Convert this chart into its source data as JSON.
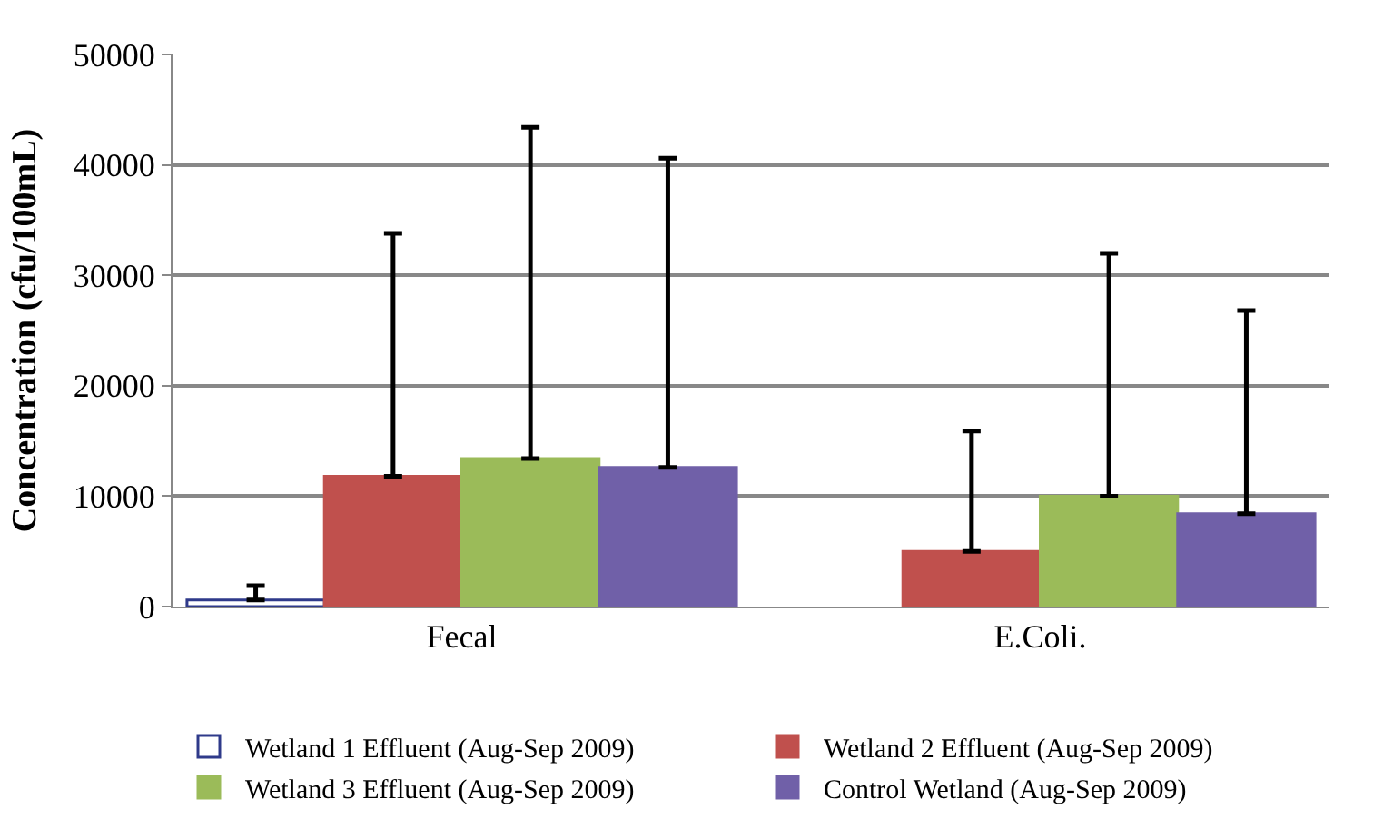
{
  "chart_data": {
    "type": "bar",
    "ylabel": "Concentration (cfu/100mL)",
    "categories": [
      "Fecal",
      "E.Coli."
    ],
    "series": [
      {
        "name": "Wetland 1 Effluent (Aug-Sep 2009)",
        "color": "#2f3a8a",
        "values": [
          600,
          null
        ],
        "errors": [
          [
            600,
            1900
          ],
          null
        ]
      },
      {
        "name": "Wetland 2 Effluent (Aug-Sep 2009)",
        "color": "#c0504d",
        "values": [
          11800,
          5000
        ],
        "errors": [
          [
            11800,
            33800
          ],
          [
            5000,
            15900
          ]
        ]
      },
      {
        "name": "Wetland 3 Effluent (Aug-Sep 2009)",
        "color": "#9bbb59",
        "values": [
          13400,
          10000
        ],
        "errors": [
          [
            13400,
            43400
          ],
          [
            10000,
            32000
          ]
        ]
      },
      {
        "name": "Control Wetland (Aug-Sep 2009)",
        "color": "#7060a8",
        "values": [
          12600,
          8400
        ],
        "errors": [
          [
            12600,
            40600
          ],
          [
            8400,
            26800
          ]
        ]
      }
    ],
    "ylim": [
      0,
      50000
    ],
    "yticks": [
      0,
      10000,
      20000,
      30000,
      40000,
      50000
    ],
    "grid": "y",
    "legend": "bottom"
  }
}
